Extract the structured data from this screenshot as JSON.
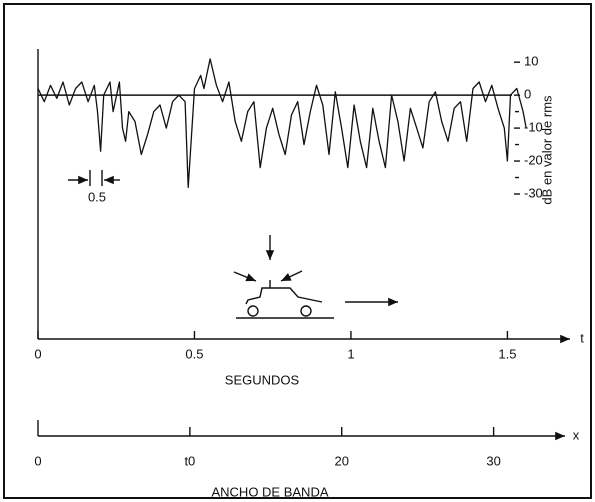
{
  "chart_data": {
    "type": "line",
    "ylabel": "dB en valor de rms",
    "xlabel": "SEGUNDOS",
    "xsymbol": "t",
    "annotation": "0.5",
    "color": "#111111",
    "x": [
      0,
      0.02,
      0.04,
      0.06,
      0.08,
      0.1,
      0.12,
      0.14,
      0.16,
      0.18,
      0.19,
      0.2,
      0.21,
      0.23,
      0.24,
      0.26,
      0.27,
      0.28,
      0.29,
      0.31,
      0.33,
      0.35,
      0.37,
      0.39,
      0.41,
      0.43,
      0.45,
      0.47,
      0.48,
      0.5,
      0.52,
      0.53,
      0.55,
      0.57,
      0.59,
      0.61,
      0.63,
      0.65,
      0.67,
      0.69,
      0.71,
      0.73,
      0.75,
      0.77,
      0.79,
      0.81,
      0.83,
      0.85,
      0.87,
      0.89,
      0.91,
      0.93,
      0.95,
      0.97,
      0.99,
      1.01,
      1.03,
      1.05,
      1.07,
      1.09,
      1.11,
      1.13,
      1.15,
      1.17,
      1.19,
      1.21,
      1.23,
      1.25,
      1.27,
      1.29,
      1.31,
      1.33,
      1.35,
      1.37,
      1.39,
      1.41,
      1.43,
      1.45,
      1.47,
      1.49,
      1.5,
      1.51,
      1.53,
      1.55,
      1.56
    ],
    "values": [
      2,
      -2,
      3,
      -1,
      4,
      -3,
      2,
      4,
      -2,
      3,
      -5,
      -17,
      0,
      4,
      -5,
      4,
      -10,
      -14,
      -5,
      -8,
      -18,
      -12,
      -5,
      -3,
      -10,
      -2,
      0,
      -2,
      -28,
      2,
      6,
      2,
      11,
      3,
      -2,
      4,
      -8,
      -14,
      -5,
      -2,
      -22,
      -10,
      -4,
      -12,
      -18,
      -6,
      -2,
      -15,
      -5,
      3,
      -3,
      -18,
      1,
      -10,
      -22,
      -3,
      -14,
      -22,
      -4,
      -14,
      -22,
      0,
      -8,
      -20,
      -4,
      -10,
      -16,
      -2,
      1,
      -8,
      -14,
      -4,
      -2,
      -14,
      2,
      4,
      -2,
      3,
      -4,
      -10,
      -20,
      0,
      2,
      -5,
      -10
    ],
    "xlim": [
      0,
      1.7
    ],
    "xticks": [
      0,
      0.5,
      1,
      1.5
    ],
    "ylim": [
      -74,
      14
    ],
    "yticks": [
      10,
      0,
      -10,
      -20,
      -30
    ],
    "yminorticks": [
      -5,
      -15,
      -25
    ],
    "hline": 0,
    "x2symbol": "x",
    "x2label": "ANCHO DE BANDA",
    "x2lim": [
      0,
      34.7
    ],
    "x2ticks": [
      0,
      {
        "value": 10,
        "label": "t0"
      },
      20,
      30
    ]
  }
}
